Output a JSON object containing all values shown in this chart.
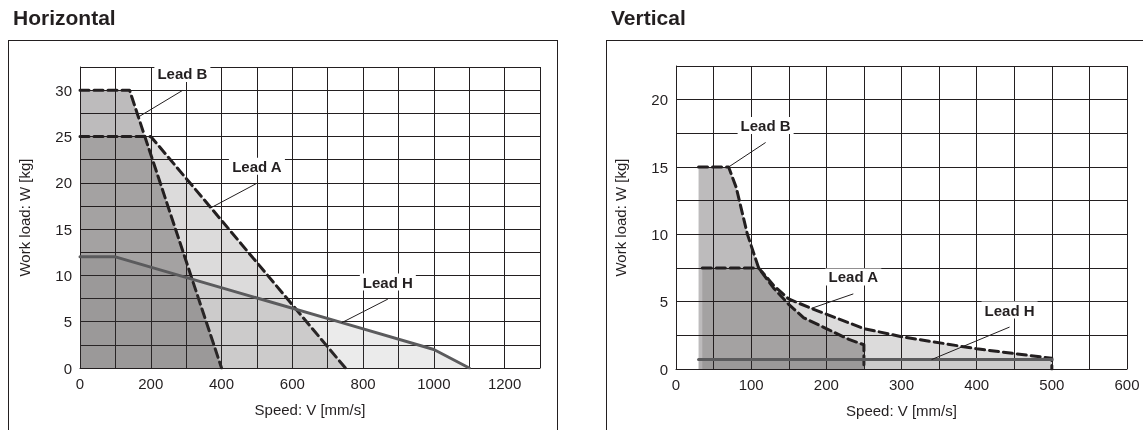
{
  "chart_data": [
    {
      "type": "area",
      "title": "Horizontal",
      "xlabel": "Speed: V [mm/s]",
      "ylabel": "Work load: W [kg]",
      "xlim": [
        0,
        1300
      ],
      "xticks": [
        0,
        {
          "value": 100,
          "label": null
        },
        200,
        {
          "value": 300,
          "label": null
        },
        400,
        {
          "value": 500,
          "label": null
        },
        600,
        {
          "value": 700,
          "label": null
        },
        800,
        {
          "value": 900,
          "label": null
        },
        1000,
        {
          "value": 1100,
          "label": null
        },
        1200,
        {
          "value": 1300,
          "label": null
        }
      ],
      "ylim": [
        0,
        32.5
      ],
      "yticks": [
        0,
        {
          "value": 2.5,
          "label": null
        },
        5,
        {
          "value": 7.5,
          "label": null
        },
        10,
        {
          "value": 12.5,
          "label": null
        },
        15,
        {
          "value": 17.5,
          "label": null
        },
        20,
        {
          "value": 22.5,
          "label": null
        },
        25,
        {
          "value": 27.5,
          "label": null
        },
        30,
        {
          "value": 32.5,
          "label": null
        }
      ],
      "grid": true,
      "legend": false,
      "marker": "none",
      "series": [
        {
          "name": "Lead B",
          "color": "#231f20",
          "line_style": "dashed",
          "x": [
            0,
            140,
            165,
            400
          ],
          "values": [
            30,
            30,
            27.1,
            0
          ]
        },
        {
          "name": "Lead A",
          "color": "#231f20",
          "line_style": "dashed",
          "x": [
            0,
            200,
            370,
            750
          ],
          "values": [
            25,
            25,
            17.3,
            0
          ]
        },
        {
          "name": "Lead H",
          "color": "#5b5b5d",
          "line_style": "solid",
          "x": [
            0,
            100,
            740,
            1000,
            1100
          ],
          "values": [
            12,
            12,
            4.9,
            2,
            0
          ]
        }
      ]
    },
    {
      "type": "area",
      "title": "Vertical",
      "xlabel": "Speed: V [mm/s]",
      "ylabel": "Work load: W [kg]",
      "xlim": [
        0,
        600
      ],
      "xticks": [
        0,
        {
          "value": 50,
          "label": null
        },
        100,
        {
          "value": 150,
          "label": null
        },
        200,
        {
          "value": 250,
          "label": null
        },
        300,
        {
          "value": 350,
          "label": null
        },
        400,
        {
          "value": 450,
          "label": null
        },
        500,
        {
          "value": 550,
          "label": null
        },
        600
      ],
      "ylim": [
        0,
        22.5
      ],
      "yticks": [
        0,
        {
          "value": 2.5,
          "label": null
        },
        5,
        {
          "value": 7.5,
          "label": null
        },
        10,
        {
          "value": 12.5,
          "label": null
        },
        15,
        {
          "value": 17.5,
          "label": null
        },
        20,
        {
          "value": 22.5,
          "label": null
        }
      ],
      "grid": true,
      "legend": false,
      "marker": "none",
      "series": [
        {
          "name": "Lead B",
          "color": "#231f20",
          "line_style": "dashed",
          "x": [
            30,
            70,
            80,
            95,
            110,
            130,
            150,
            170,
            200,
            230,
            250,
            250
          ],
          "values": [
            15,
            15,
            13.5,
            10,
            7.5,
            6,
            4.8,
            3.8,
            3,
            2.2,
            1.8,
            0
          ]
        },
        {
          "name": "Lead A",
          "color": "#231f20",
          "line_style": "dashed",
          "x": [
            35,
            110,
            130,
            150,
            180,
            250,
            300,
            400,
            500,
            500
          ],
          "values": [
            7.5,
            7.5,
            6.2,
            5.2,
            4.5,
            3,
            2.4,
            1.5,
            0.8,
            0
          ]
        },
        {
          "name": "Lead H",
          "color": "#5b5b5d",
          "line_style": "solid",
          "x": [
            30,
            340,
            500
          ],
          "values": [
            0.7,
            0.7,
            0.7
          ]
        }
      ]
    }
  ]
}
